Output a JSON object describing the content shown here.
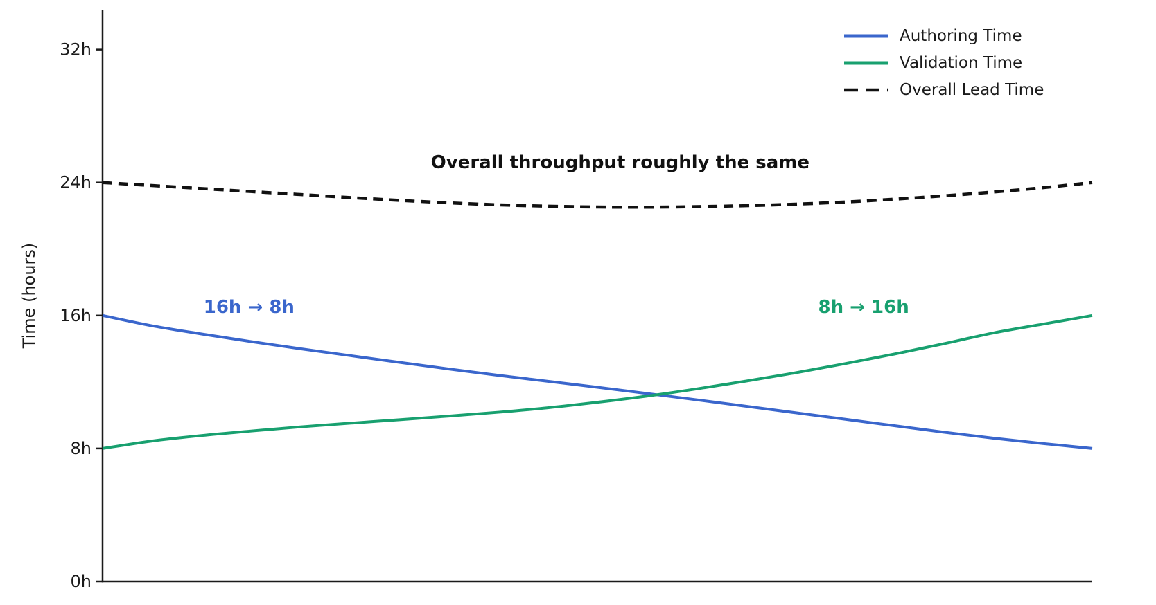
{
  "chart_data": {
    "type": "line",
    "title": "",
    "xlabel": "",
    "ylabel": "Time (hours)",
    "xlim": [
      0,
      1
    ],
    "ylim": [
      0,
      34.4
    ],
    "grid": false,
    "background_color": "#ffffff",
    "axis_color": "#1a1a1a",
    "x_ticks": [],
    "y_ticks": [
      {
        "value": 0,
        "label": "0h"
      },
      {
        "value": 8,
        "label": "8h"
      },
      {
        "value": 16,
        "label": "16h"
      },
      {
        "value": 24,
        "label": "24h"
      },
      {
        "value": 32,
        "label": "32h"
      }
    ],
    "x": [
      0,
      0.05,
      0.1,
      0.15,
      0.2,
      0.25,
      0.3,
      0.35,
      0.4,
      0.45,
      0.5,
      0.55,
      0.6,
      0.65,
      0.7,
      0.75,
      0.8,
      0.85,
      0.9,
      0.95,
      1
    ],
    "series": [
      {
        "key": "authoring-time",
        "name": "Authoring Time",
        "color": "#3a66cc",
        "style": "solid",
        "start_label": "16h",
        "end_label": "8h",
        "values": [
          16.0,
          15.38,
          14.89,
          14.43,
          14.0,
          13.59,
          13.18,
          12.78,
          12.4,
          12.04,
          11.68,
          11.31,
          10.93,
          10.54,
          10.15,
          9.76,
          9.37,
          8.98,
          8.62,
          8.3,
          8.0
        ]
      },
      {
        "key": "validation-time",
        "name": "Validation Time",
        "color": "#18a06f",
        "style": "solid",
        "start_label": "8h",
        "end_label": "16h",
        "values": [
          8.0,
          8.45,
          8.78,
          9.05,
          9.3,
          9.52,
          9.73,
          9.95,
          10.18,
          10.45,
          10.78,
          11.15,
          11.58,
          12.05,
          12.55,
          13.1,
          13.68,
          14.3,
          14.95,
          15.48,
          16.0
        ]
      },
      {
        "key": "overall-lead-time",
        "name": "Overall Lead Time",
        "color": "#111111",
        "style": "dashed",
        "start_label": "24h",
        "end_label": "24h",
        "values": [
          24.0,
          23.82,
          23.64,
          23.46,
          23.28,
          23.1,
          22.93,
          22.78,
          22.66,
          22.58,
          22.53,
          22.52,
          22.55,
          22.61,
          22.7,
          22.83,
          23.0,
          23.2,
          23.43,
          23.69,
          24.0
        ]
      }
    ],
    "legend": {
      "position": "upper right",
      "entries": [
        "Authoring Time",
        "Validation Time",
        "Overall Lead Time"
      ]
    },
    "annotations": [
      {
        "key": "authoring-change",
        "text": "16h → 8h",
        "x": 0.148,
        "y": 16.5,
        "color": "#3a66cc",
        "bold": true
      },
      {
        "key": "validation-change",
        "text": "8h → 16h",
        "x": 0.769,
        "y": 16.5,
        "color": "#18a06f",
        "bold": true
      },
      {
        "key": "overall-note",
        "text": "Overall throughput roughly the same",
        "x": 0.523,
        "y": 25.2,
        "color": "#111111",
        "bold": true
      }
    ]
  }
}
